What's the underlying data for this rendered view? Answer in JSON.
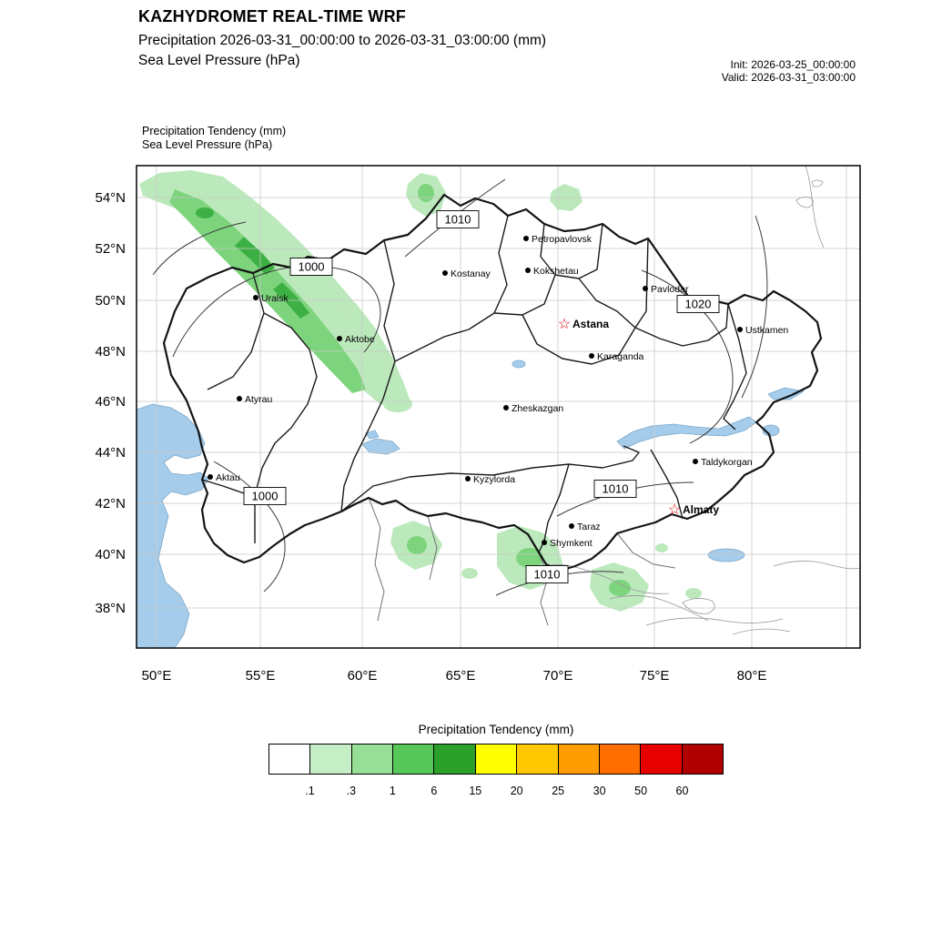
{
  "header": {
    "title": "KAZHYDROMET REAL-TIME WRF",
    "line2": "Precipitation 2026-03-31_00:00:00 to 2026-03-31_03:00:00 (mm)",
    "line3": "Sea Level Pressure  (hPa)",
    "init_label": "Init: 2026-03-25_00:00:00",
    "valid_label": "Valid: 2026-03-31_03:00:00"
  },
  "map": {
    "legend": {
      "line1": "Precipitation Tendency   (mm)",
      "line2": "Sea Level Pressure   (hPa)"
    },
    "lat_labels": [
      "54°N",
      "52°N",
      "50°N",
      "48°N",
      "46°N",
      "44°N",
      "42°N",
      "40°N",
      "38°N"
    ],
    "lon_labels": [
      "50°E",
      "55°E",
      "60°E",
      "65°E",
      "70°E",
      "75°E",
      "80°E"
    ],
    "star_glyph": "☆",
    "cities": [
      {
        "name": "Petropavlovsk"
      },
      {
        "name": "Kostanay"
      },
      {
        "name": "Kokshetau"
      },
      {
        "name": "Pavlodar"
      },
      {
        "name": "Uralsk"
      },
      {
        "name": "Astana",
        "capital": true
      },
      {
        "name": "Ustkamen"
      },
      {
        "name": "Aktobe"
      },
      {
        "name": "Karaganda"
      },
      {
        "name": "Atyrau"
      },
      {
        "name": "Zheskazgan"
      },
      {
        "name": "Taldykorgan"
      },
      {
        "name": "Aktau"
      },
      {
        "name": "Kyzylorda"
      },
      {
        "name": "Almaty",
        "capital": true
      },
      {
        "name": "Taraz"
      },
      {
        "name": "Shymkent"
      }
    ],
    "pressure_labels": [
      "1010",
      "1000",
      "1020",
      "1000",
      "1010",
      "1010"
    ]
  },
  "map_colors": {
    "precip_light": "#bce9bc",
    "precip_medium": "#7dd47d",
    "precip_dark": "#3db043",
    "water": "#a5cdeb"
  },
  "colorbar": {
    "title": "Precipitation Tendency (mm)",
    "ticks": [
      ".1",
      ".3",
      "1",
      "6",
      "15",
      "20",
      "25",
      "30",
      "50",
      "60"
    ],
    "colors": [
      "#ffffff",
      "#c6eec6",
      "#97df97",
      "#58c75a",
      "#2ba02b",
      "#ffff00",
      "#ffc800",
      "#ff9c00",
      "#ff6e00",
      "#e60000",
      "#b00000"
    ]
  }
}
